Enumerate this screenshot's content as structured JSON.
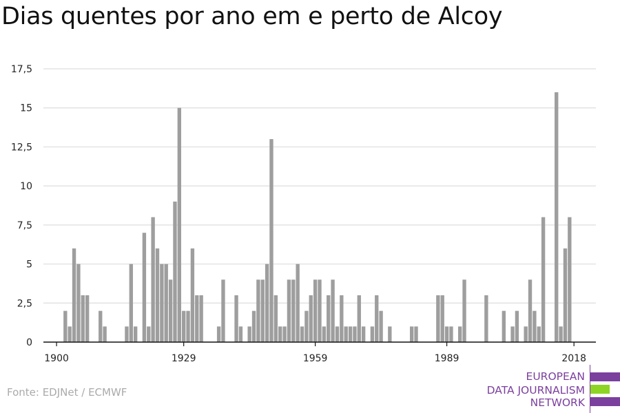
{
  "title": "Dias quentes por ano em e perto de Alcoy",
  "source": "Fonte: EDJNet / ECMWF",
  "logo": {
    "lines": [
      "EUROPEAN",
      "DATA JOURNALISM",
      "NETWORK"
    ],
    "colors": {
      "purple": "#7b3f9e",
      "green": "#8ed425"
    }
  },
  "chart_data": {
    "type": "bar",
    "title": "Dias quentes por ano em e perto de Alcoy",
    "xlabel": "",
    "ylabel": "",
    "bar_color": "#9e9e9e",
    "grid": true,
    "x_ticks": [
      1900,
      1929,
      1959,
      1989,
      2018
    ],
    "y_ticks": [
      0,
      2.5,
      5,
      7.5,
      10,
      12.5,
      15,
      17.5
    ],
    "y_tick_labels": [
      "0",
      "2,5",
      "5",
      "7,5",
      "10",
      "12,5",
      "15",
      "17,5"
    ],
    "xlim": [
      1897,
      2023
    ],
    "ylim": [
      0,
      17.5
    ],
    "x": [
      1902,
      1903,
      1904,
      1905,
      1906,
      1907,
      1910,
      1911,
      1916,
      1917,
      1918,
      1920,
      1921,
      1922,
      1923,
      1924,
      1925,
      1926,
      1927,
      1928,
      1929,
      1930,
      1931,
      1932,
      1933,
      1937,
      1938,
      1941,
      1942,
      1944,
      1945,
      1946,
      1947,
      1948,
      1949,
      1950,
      1951,
      1952,
      1953,
      1954,
      1955,
      1956,
      1957,
      1958,
      1959,
      1960,
      1961,
      1962,
      1963,
      1964,
      1965,
      1966,
      1967,
      1968,
      1969,
      1970,
      1972,
      1973,
      1974,
      1976,
      1981,
      1982,
      1987,
      1988,
      1989,
      1990,
      1992,
      1993,
      1998,
      2002,
      2004,
      2005,
      2007,
      2008,
      2009,
      2010,
      2011,
      2014,
      2015,
      2016,
      2017
    ],
    "values": [
      2,
      1,
      6,
      5,
      3,
      3,
      2,
      1,
      1,
      5,
      1,
      7,
      1,
      8,
      6,
      5,
      5,
      4,
      9,
      15,
      2,
      2,
      6,
      3,
      3,
      1,
      4,
      3,
      1,
      1,
      2,
      4,
      4,
      5,
      13,
      3,
      1,
      1,
      4,
      4,
      5,
      1,
      2,
      3,
      4,
      4,
      1,
      3,
      4,
      1,
      3,
      1,
      1,
      1,
      3,
      1,
      1,
      3,
      2,
      1,
      1,
      1,
      3,
      3,
      1,
      1,
      1,
      4,
      3,
      2,
      1,
      2,
      1,
      4,
      2,
      1,
      8,
      16,
      1,
      6,
      8
    ]
  }
}
